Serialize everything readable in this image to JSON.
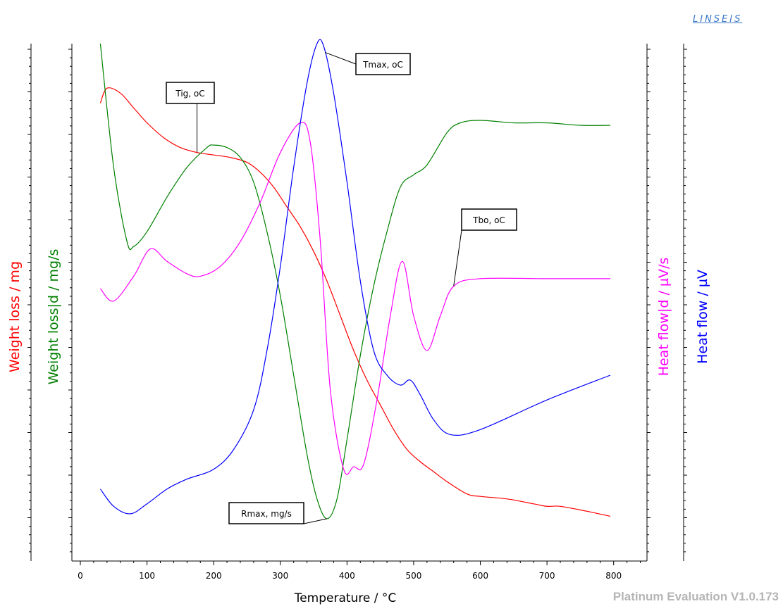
{
  "brand": "LINSEIS",
  "version": "Platinum Evaluation V1.0.173",
  "chart_data": {
    "type": "line",
    "xlabel": "Temperature / °C",
    "xlim": [
      0,
      850
    ],
    "xticks": [
      0,
      100,
      200,
      300,
      400,
      500,
      600,
      700,
      800
    ],
    "series": [
      {
        "name": "Weight loss / mg",
        "color": "#ff0000",
        "axis": "left-outer",
        "x": [
          30,
          40,
          60,
          80,
          100,
          125,
          150,
          175,
          200,
          225,
          250,
          270,
          290,
          310,
          330,
          350,
          370,
          390,
          410,
          430,
          450,
          470,
          490,
          510,
          530,
          550,
          580,
          600,
          640,
          680,
          700,
          720,
          760,
          795
        ],
        "y": [
          0.88,
          0.91,
          0.9,
          0.87,
          0.84,
          0.81,
          0.79,
          0.78,
          0.775,
          0.77,
          0.76,
          0.74,
          0.71,
          0.67,
          0.63,
          0.58,
          0.52,
          0.45,
          0.38,
          0.32,
          0.27,
          0.22,
          0.18,
          0.155,
          0.135,
          0.115,
          0.09,
          0.085,
          0.08,
          0.07,
          0.065,
          0.065,
          0.055,
          0.045
        ]
      },
      {
        "name": "Weight loss|d / mg/s",
        "color": "#008000",
        "axis": "left-inner",
        "x": [
          30,
          50,
          70,
          80,
          100,
          130,
          160,
          190,
          200,
          220,
          240,
          260,
          280,
          300,
          320,
          340,
          355,
          370,
          385,
          400,
          420,
          440,
          460,
          480,
          500,
          520,
          550,
          570,
          600,
          650,
          700,
          750,
          795
        ],
        "y": [
          1.0,
          0.75,
          0.6,
          0.59,
          0.62,
          0.69,
          0.75,
          0.79,
          0.795,
          0.79,
          0.77,
          0.72,
          0.62,
          0.49,
          0.33,
          0.17,
          0.08,
          0.04,
          0.08,
          0.2,
          0.37,
          0.51,
          0.62,
          0.71,
          0.735,
          0.755,
          0.82,
          0.84,
          0.845,
          0.84,
          0.84,
          0.835,
          0.835
        ]
      },
      {
        "name": "Heat flow|d / µV/s",
        "color": "#ff00ff",
        "axis": "right-inner",
        "x": [
          30,
          50,
          80,
          105,
          130,
          160,
          180,
          210,
          240,
          270,
          300,
          330,
          345,
          360,
          375,
          395,
          410,
          425,
          445,
          465,
          483,
          500,
          520,
          540,
          560,
          600,
          700,
          795
        ],
        "y": [
          0.505,
          0.48,
          0.53,
          0.585,
          0.56,
          0.535,
          0.53,
          0.55,
          0.6,
          0.68,
          0.78,
          0.84,
          0.8,
          0.6,
          0.3,
          0.14,
          0.145,
          0.15,
          0.28,
          0.45,
          0.56,
          0.45,
          0.38,
          0.45,
          0.51,
          0.525,
          0.525,
          0.525
        ]
      },
      {
        "name": "Heat flow / µV",
        "color": "#0000ff",
        "axis": "right-outer",
        "x": [
          30,
          50,
          75,
          100,
          130,
          160,
          200,
          230,
          260,
          280,
          300,
          320,
          340,
          355,
          365,
          380,
          400,
          420,
          440,
          460,
          480,
          495,
          510,
          530,
          555,
          600,
          700,
          795
        ],
        "y": [
          0.1,
          0.065,
          0.05,
          0.07,
          0.1,
          0.12,
          0.14,
          0.18,
          0.26,
          0.38,
          0.55,
          0.75,
          0.92,
          1.0,
          0.995,
          0.9,
          0.72,
          0.52,
          0.38,
          0.33,
          0.31,
          0.32,
          0.29,
          0.24,
          0.21,
          0.22,
          0.28,
          0.33
        ]
      }
    ],
    "annotations": [
      {
        "label": "Tig, oC",
        "x": 175
      },
      {
        "label": "Tmax, oC",
        "x": 367
      },
      {
        "label": "Tbo, oC",
        "x": 560
      },
      {
        "label": "Rmax, mg/s",
        "x": 370
      }
    ]
  }
}
